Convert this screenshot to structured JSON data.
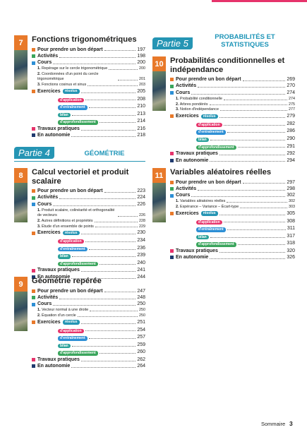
{
  "parts": [
    {
      "label": "Partie 4",
      "title": "GÉOMÉTRIE"
    },
    {
      "label": "Partie 5",
      "title": "PROBABILITÉS ET STATISTIQUES"
    }
  ],
  "chapters": [
    {
      "number": 7,
      "title": "Fonctions trigonométriques",
      "start": [
        {
          "label": "Pour prendre un bon départ",
          "page": 197
        },
        {
          "label": "Activités",
          "page": 198
        },
        {
          "label": "Cours",
          "page": 200
        }
      ],
      "lessons": [
        {
          "number": "1.",
          "text": "Repérage sur le cercle trigonométrique",
          "page": 200
        },
        {
          "number": "2.",
          "text": "Coordonnées d'un point du cercle trigonométrique",
          "page": 201
        },
        {
          "number": "3.",
          "text": "Fonctions cosinus et sinus",
          "page": 203
        }
      ],
      "exercices": {
        "label": "Exercices",
        "tag": "résolus",
        "page": 205
      },
      "levels": [
        {
          "tag": "d'application",
          "page": 208
        },
        {
          "tag": "d'entraînement",
          "page": 210
        },
        {
          "tag": "bilan",
          "page": 213
        },
        {
          "tag": "d'approfondissement",
          "page": 214
        }
      ],
      "end": [
        {
          "label": "Travaux pratiques",
          "page": 216
        },
        {
          "label": "En autonomie",
          "page": 218
        }
      ]
    },
    {
      "number": 8,
      "title": "Calcul vectoriel et produit scalaire",
      "start": [
        {
          "label": "Pour prendre un bon départ",
          "page": 223
        },
        {
          "label": "Activités",
          "page": 224
        },
        {
          "label": "Cours",
          "page": 226
        }
      ],
      "lessons": [
        {
          "number": "1.",
          "text": "Produit scalaire, colinéarité et orthogonalité de vecteurs",
          "page": 226
        },
        {
          "number": "2.",
          "text": "Autres définitions et propriétés",
          "page": 228
        },
        {
          "number": "3.",
          "text": "Étude d'un ensemble de points",
          "page": 229
        }
      ],
      "exercices": {
        "label": "Exercices",
        "tag": "résolus",
        "page": 230
      },
      "levels": [
        {
          "tag": "d'application",
          "page": 234
        },
        {
          "tag": "d'entraînement",
          "page": 236
        },
        {
          "tag": "bilan",
          "page": 239
        },
        {
          "tag": "d'approfondissement",
          "page": 240
        }
      ],
      "end": [
        {
          "label": "Travaux pratiques",
          "page": 241
        },
        {
          "label": "En autonomie",
          "page": 244
        }
      ]
    },
    {
      "number": 9,
      "title": "Géométrie repérée",
      "start": [
        {
          "label": "Pour prendre un bon départ",
          "page": 247
        },
        {
          "label": "Activités",
          "page": 248
        },
        {
          "label": "Cours",
          "page": 250
        }
      ],
      "lessons": [
        {
          "number": "1.",
          "text": "Vecteur normal à une droite",
          "page": 250
        },
        {
          "number": "2.",
          "text": "Équation d'un cercle",
          "page": 250
        }
      ],
      "exercices": {
        "label": "Exercices",
        "tag": "résolus",
        "page": 251
      },
      "levels": [
        {
          "tag": "d'application",
          "page": 254
        },
        {
          "tag": "d'entraînement",
          "page": 257
        },
        {
          "tag": "bilan",
          "page": 259
        },
        {
          "tag": "d'approfondissement",
          "page": 260
        }
      ],
      "end": [
        {
          "label": "Travaux pratiques",
          "page": 262
        },
        {
          "label": "En autonomie",
          "page": 264
        }
      ]
    },
    {
      "number": 10,
      "title": "Probabilités conditionnelles et indépendance",
      "start": [
        {
          "label": "Pour prendre un bon départ",
          "page": 269
        },
        {
          "label": "Activités",
          "page": 270
        },
        {
          "label": "Cours",
          "page": 274
        }
      ],
      "lessons": [
        {
          "number": "1.",
          "text": "Probabilité conditionnelle",
          "page": 274
        },
        {
          "number": "2.",
          "text": "Arbres pondérés",
          "page": 275
        },
        {
          "number": "3.",
          "text": "Notion d'indépendance",
          "page": 277
        }
      ],
      "exercices": {
        "label": "Exercices",
        "tag": "résolus",
        "page": 279
      },
      "levels": [
        {
          "tag": "d'application",
          "page": 282
        },
        {
          "tag": "d'entraînement",
          "page": 286
        },
        {
          "tag": "bilan",
          "page": 290
        },
        {
          "tag": "d'approfondissement",
          "page": 291
        }
      ],
      "end": [
        {
          "label": "Travaux pratiques",
          "page": 292
        },
        {
          "label": "En autonomie",
          "page": 294
        }
      ]
    },
    {
      "number": 11,
      "title": "Variables aléatoires réelles",
      "start": [
        {
          "label": "Pour prendre un bon départ",
          "page": 297
        },
        {
          "label": "Activités",
          "page": 298
        },
        {
          "label": "Cours",
          "page": 302
        }
      ],
      "lessons": [
        {
          "number": "1.",
          "text": "Variables aléatoires réelles",
          "page": 302
        },
        {
          "number": "2.",
          "text": "Espérance – Variance – Écart-type",
          "page": 303
        }
      ],
      "exercices": {
        "label": "Exercices",
        "tag": "résolus",
        "page": 305
      },
      "levels": [
        {
          "tag": "d'application",
          "page": 308
        },
        {
          "tag": "d'entraînement",
          "page": 311
        },
        {
          "tag": "bilan",
          "page": 317
        },
        {
          "tag": "d'approfondissement",
          "page": 318
        }
      ],
      "end": [
        {
          "label": "Travaux pratiques",
          "page": 320
        },
        {
          "label": "En autonomie",
          "page": 326
        }
      ]
    }
  ],
  "footer": {
    "label": "Sommaire",
    "page": 3
  }
}
